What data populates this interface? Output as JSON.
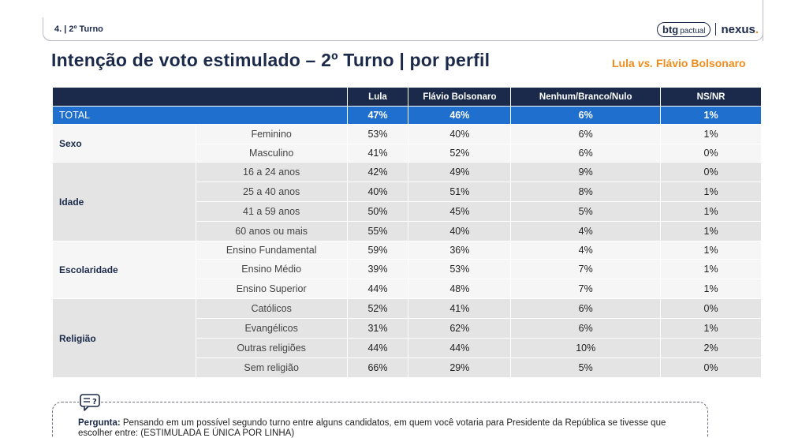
{
  "header": {
    "crumb": "4. | 2º Turno",
    "logo_btg": "btg",
    "logo_pactual": "pactual",
    "logo_nexus": "nexus",
    "logo_dot": "."
  },
  "title": "Intenção de voto estimulado – 2º Turno | por perfil",
  "subtitle": {
    "a": "Lula ",
    "vs": "vs.",
    "b": " Flávio Bolsonaro"
  },
  "table": {
    "columns": [
      "Lula",
      "Flávio Bolsonaro",
      "Nenhum/Branco/Nulo",
      "NS/NR"
    ],
    "total": {
      "label": "TOTAL",
      "values": [
        "47%",
        "46%",
        "6%",
        "1%"
      ]
    },
    "groups": [
      {
        "name": "Sexo",
        "rows": [
          {
            "label": "Feminino",
            "values": [
              "53%",
              "40%",
              "6%",
              "1%"
            ]
          },
          {
            "label": "Masculino",
            "values": [
              "41%",
              "52%",
              "6%",
              "0%"
            ]
          }
        ]
      },
      {
        "name": "Idade",
        "rows": [
          {
            "label": "16 a 24 anos",
            "values": [
              "42%",
              "49%",
              "9%",
              "0%"
            ]
          },
          {
            "label": "25 a 40 anos",
            "values": [
              "40%",
              "51%",
              "8%",
              "1%"
            ]
          },
          {
            "label": "41 a 59 anos",
            "values": [
              "50%",
              "45%",
              "5%",
              "1%"
            ]
          },
          {
            "label": "60 anos ou mais",
            "values": [
              "55%",
              "40%",
              "4%",
              "1%"
            ]
          }
        ]
      },
      {
        "name": "Escolaridade",
        "rows": [
          {
            "label": "Ensino Fundamental",
            "values": [
              "59%",
              "36%",
              "4%",
              "1%"
            ]
          },
          {
            "label": "Ensino Médio",
            "values": [
              "39%",
              "53%",
              "7%",
              "1%"
            ]
          },
          {
            "label": "Ensino Superior",
            "values": [
              "44%",
              "48%",
              "7%",
              "1%"
            ]
          }
        ]
      },
      {
        "name": "Religião",
        "rows": [
          {
            "label": "Católicos",
            "values": [
              "52%",
              "41%",
              "6%",
              "0%"
            ]
          },
          {
            "label": "Evangélicos",
            "values": [
              "31%",
              "62%",
              "6%",
              "1%"
            ]
          },
          {
            "label": "Outras religiões",
            "values": [
              "44%",
              "44%",
              "10%",
              "2%"
            ]
          },
          {
            "label": "Sem religião",
            "values": [
              "66%",
              "29%",
              "5%",
              "0%"
            ]
          }
        ]
      }
    ]
  },
  "note": {
    "label": "Pergunta:",
    "text": " Pensando em um possível segundo turno entre alguns candidatos, em quem você votaria para Presidente da República se tivesse que escolher entre: (ESTIMULADA E ÚNICA POR LINHA)"
  },
  "colors": {
    "navy": "#1b2a4a",
    "accent": "#f08c1c",
    "total_row": "#1f6fcf"
  }
}
